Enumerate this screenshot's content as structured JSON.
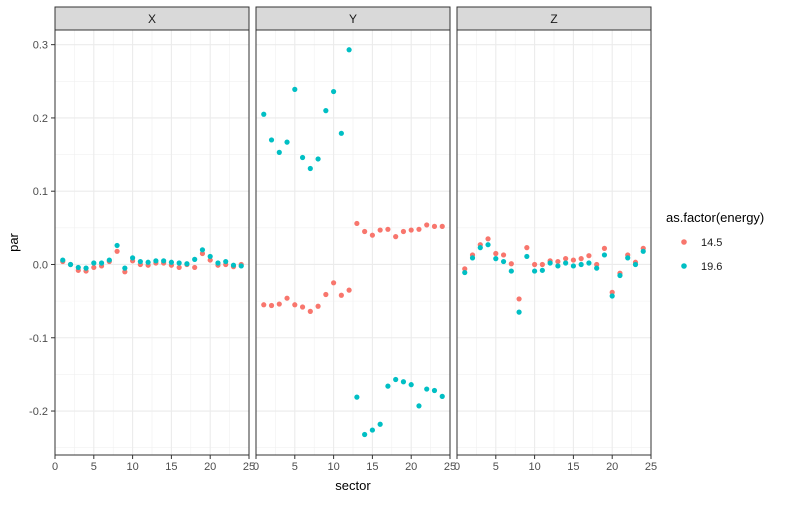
{
  "chart_data": {
    "type": "scatter",
    "facet_by": "component",
    "panels": [
      "X",
      "Y",
      "Z"
    ],
    "xlabel": "sector",
    "ylabel": "par",
    "xlim": [
      0,
      25
    ],
    "ylim": [
      -0.26,
      0.32
    ],
    "x_ticks": [
      0,
      5,
      10,
      15,
      20,
      25
    ],
    "y_ticks": [
      -0.2,
      -0.1,
      0.0,
      0.1,
      0.2,
      0.3
    ],
    "y_tick_labels": [
      "-0.2",
      "-0.1",
      "0.0",
      "0.1",
      "0.2",
      "0.3"
    ],
    "grid": true,
    "legend": {
      "title": "as.factor(energy)",
      "position": "right",
      "entries": [
        {
          "label": "14.5",
          "color": "#F8766D"
        },
        {
          "label": "19.6",
          "color": "#00BFC4"
        }
      ]
    },
    "x": [
      1,
      2,
      3,
      4,
      5,
      6,
      7,
      8,
      9,
      10,
      11,
      12,
      13,
      14,
      15,
      16,
      17,
      18,
      19,
      20,
      21,
      22,
      23,
      24
    ],
    "series": [
      {
        "name": "14.5",
        "color": "#F8766D",
        "panels": {
          "X": [
            0.004,
            0.0,
            -0.008,
            -0.009,
            -0.004,
            -0.002,
            0.004,
            0.018,
            -0.01,
            0.005,
            0.0,
            -0.001,
            0.002,
            0.002,
            -0.001,
            -0.004,
            0.0,
            -0.004,
            0.015,
            0.006,
            -0.001,
            0.0,
            -0.003,
            0.0
          ],
          "Y": [
            -0.055,
            -0.056,
            -0.054,
            -0.046,
            -0.055,
            -0.058,
            -0.064,
            -0.057,
            -0.041,
            -0.025,
            -0.042,
            -0.035,
            0.056,
            0.045,
            0.04,
            0.047,
            0.048,
            0.038,
            0.045,
            0.047,
            0.048,
            0.054,
            0.052,
            0.052
          ],
          "Z": [
            -0.006,
            0.013,
            0.027,
            0.035,
            0.015,
            0.013,
            0.001,
            -0.047,
            0.023,
            0.0,
            0.0,
            0.005,
            0.004,
            0.008,
            0.006,
            0.008,
            0.012,
            0.0,
            0.022,
            -0.038,
            -0.012,
            0.013,
            0.003,
            0.022
          ]
        }
      },
      {
        "name": "19.6",
        "color": "#00BFC4",
        "panels": {
          "X": [
            0.006,
            0.0,
            -0.004,
            -0.005,
            0.002,
            0.002,
            0.006,
            0.026,
            -0.005,
            0.009,
            0.004,
            0.003,
            0.005,
            0.005,
            0.003,
            0.002,
            0.001,
            0.007,
            0.02,
            0.011,
            0.002,
            0.004,
            -0.001,
            -0.002
          ],
          "Y": [
            0.205,
            0.17,
            0.153,
            0.167,
            0.239,
            0.146,
            0.131,
            0.144,
            0.21,
            0.236,
            0.179,
            0.293,
            -0.181,
            -0.232,
            -0.226,
            -0.218,
            -0.166,
            -0.157,
            -0.16,
            -0.164,
            -0.193,
            -0.17,
            -0.172,
            -0.18
          ],
          "Z": [
            -0.011,
            0.009,
            0.023,
            0.027,
            0.008,
            0.004,
            -0.009,
            -0.065,
            0.011,
            -0.009,
            -0.008,
            0.002,
            -0.002,
            0.002,
            -0.002,
            0.0,
            0.002,
            -0.005,
            0.013,
            -0.043,
            -0.015,
            0.009,
            0.0,
            0.018
          ]
        }
      }
    ]
  }
}
